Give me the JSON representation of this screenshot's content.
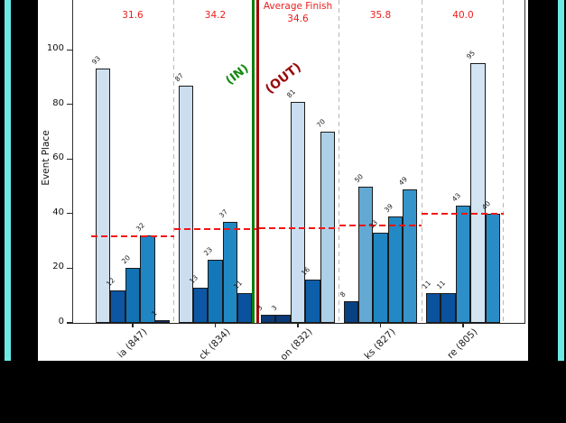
{
  "figure": {
    "ylabel": "Event Place",
    "yticks": [
      0,
      20,
      40,
      60,
      80,
      100
    ],
    "average_finish_header": "Average Finish",
    "cutoff": {
      "in_label": "(IN)",
      "out_label": "(OUT)"
    },
    "colors": {
      "frame_border": "#000000",
      "frame_stripe": "#6ce9e4",
      "red_text": "#ec1c1c",
      "avg_line": "#f51414",
      "separator": "#b8b8b8",
      "cut_in": "#0c7f0c",
      "cut_out": "#a30b0b",
      "in_text": "#128a12",
      "out_text": "#9a0a0a"
    },
    "groups": [
      {
        "label": "ia (847)",
        "average_label": "31.6",
        "average": 31.6,
        "values": [
          93,
          12,
          20,
          32,
          1
        ],
        "colors": [
          "#cfe1f1",
          "#0c56a4",
          "#1173b4",
          "#1f86c3",
          "#08306b"
        ]
      },
      {
        "label": "ck (834)",
        "average_label": "34.2",
        "average": 34.2,
        "values": [
          87,
          13,
          23,
          37,
          11
        ],
        "colors": [
          "#cadef0",
          "#0c58a6",
          "#1377b8",
          "#2089c4",
          "#0a519e"
        ]
      },
      {
        "label": "on (832)",
        "average_label": "34.6",
        "average": 34.6,
        "values": [
          3,
          3,
          81,
          16,
          70
        ],
        "colors": [
          "#0a3a78",
          "#0a3a78",
          "#c8ddf0",
          "#0e5fa9",
          "#abd0e7"
        ]
      },
      {
        "label": "ks (827)",
        "average_label": "35.8",
        "average": 35.8,
        "values": [
          8,
          50,
          33,
          39,
          49
        ],
        "colors": [
          "#0a4183",
          "#64a9d3",
          "#1f86c3",
          "#2289c5",
          "#3794ca"
        ]
      },
      {
        "label": "re (805)",
        "average_label": "40.0",
        "average": 40.0,
        "values": [
          11,
          11,
          43,
          95,
          40
        ],
        "colors": [
          "#0a519e",
          "#0a519e",
          "#2e8fc8",
          "#d3e4f3",
          "#2a8cc6"
        ]
      }
    ]
  },
  "chart_data": {
    "type": "bar",
    "title": "",
    "xlabel": "",
    "ylabel": "Event Place",
    "yticks": [
      0,
      20,
      40,
      60,
      80,
      100
    ],
    "ylim": [
      0,
      118
    ],
    "grid": false,
    "legend": false,
    "categories": [
      "ia (847)",
      "ck (834)",
      "on (832)",
      "ks (827)",
      "re (805)"
    ],
    "series": [
      {
        "name": "ia (847)",
        "values": [
          93,
          12,
          20,
          32,
          1
        ]
      },
      {
        "name": "ck (834)",
        "values": [
          87,
          13,
          23,
          37,
          11
        ]
      },
      {
        "name": "on (832)",
        "values": [
          3,
          3,
          81,
          16,
          70
        ]
      },
      {
        "name": "ks (827)",
        "values": [
          8,
          50,
          33,
          39,
          49
        ]
      },
      {
        "name": "re (805)",
        "values": [
          11,
          11,
          43,
          95,
          40
        ]
      }
    ],
    "team_average_finish": [
      31.6,
      34.2,
      34.6,
      35.8,
      40.0
    ],
    "annotation_header": "Average Finish",
    "reference_lines": "red dashed horizontal segment per group at that group's average finish",
    "cutoff": {
      "label_in": "(IN)",
      "label_out": "(OUT)",
      "position": "vertical green/dark-red double line between ck (834) and on (832)"
    },
    "bar_color_rule": "higher event place = lighter blue (reversed Blues shading)"
  }
}
